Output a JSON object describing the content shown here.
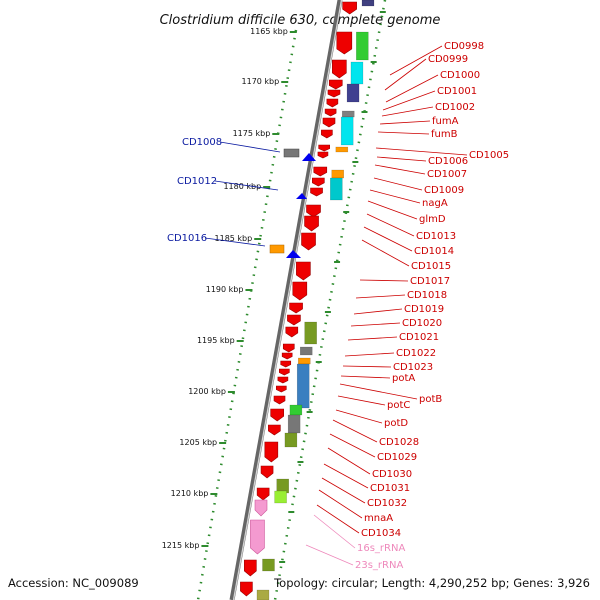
{
  "title": "Clostridium difficile 630, complete genome",
  "footer": {
    "accession": "Accession: NC_009089",
    "topology": "Topology: circular; Length: 4,290,252 bp; Genes: 3,926"
  },
  "colors": {
    "forward_label": "#0a1aa0",
    "reverse_label": "#cc0000",
    "rrna_label": "#ee88bb",
    "tick": "#2e8b2e"
  },
  "ticks": [
    "1165 kbp",
    "1170 kbp",
    "1175 kbp",
    "1180 kbp",
    "1185 kbp",
    "1190 kbp",
    "1195 kbp",
    "1200 kbp",
    "1205 kbp",
    "1210 kbp",
    "1215 kbp"
  ],
  "forward_labels": [
    "CD1008",
    "CD1012",
    "CD1016"
  ],
  "reverse_labels": [
    "CD0998",
    "CD0999",
    "CD1000",
    "CD1001",
    "CD1002",
    "fumA",
    "fumB",
    "CD1005",
    "CD1006",
    "CD1007",
    "CD1009",
    "nagA",
    "glmD",
    "CD1013",
    "CD1014",
    "CD1015",
    "CD1017",
    "CD1018",
    "CD1019",
    "CD1020",
    "CD1021",
    "CD1022",
    "CD1023",
    "potA",
    "potB",
    "potC",
    "potD",
    "CD1028",
    "CD1029",
    "CD1030",
    "CD1031",
    "CD1032",
    "mnaA",
    "CD1034"
  ],
  "rrna_labels": [
    "16s_rRNA",
    "23s_rRNA"
  ]
}
